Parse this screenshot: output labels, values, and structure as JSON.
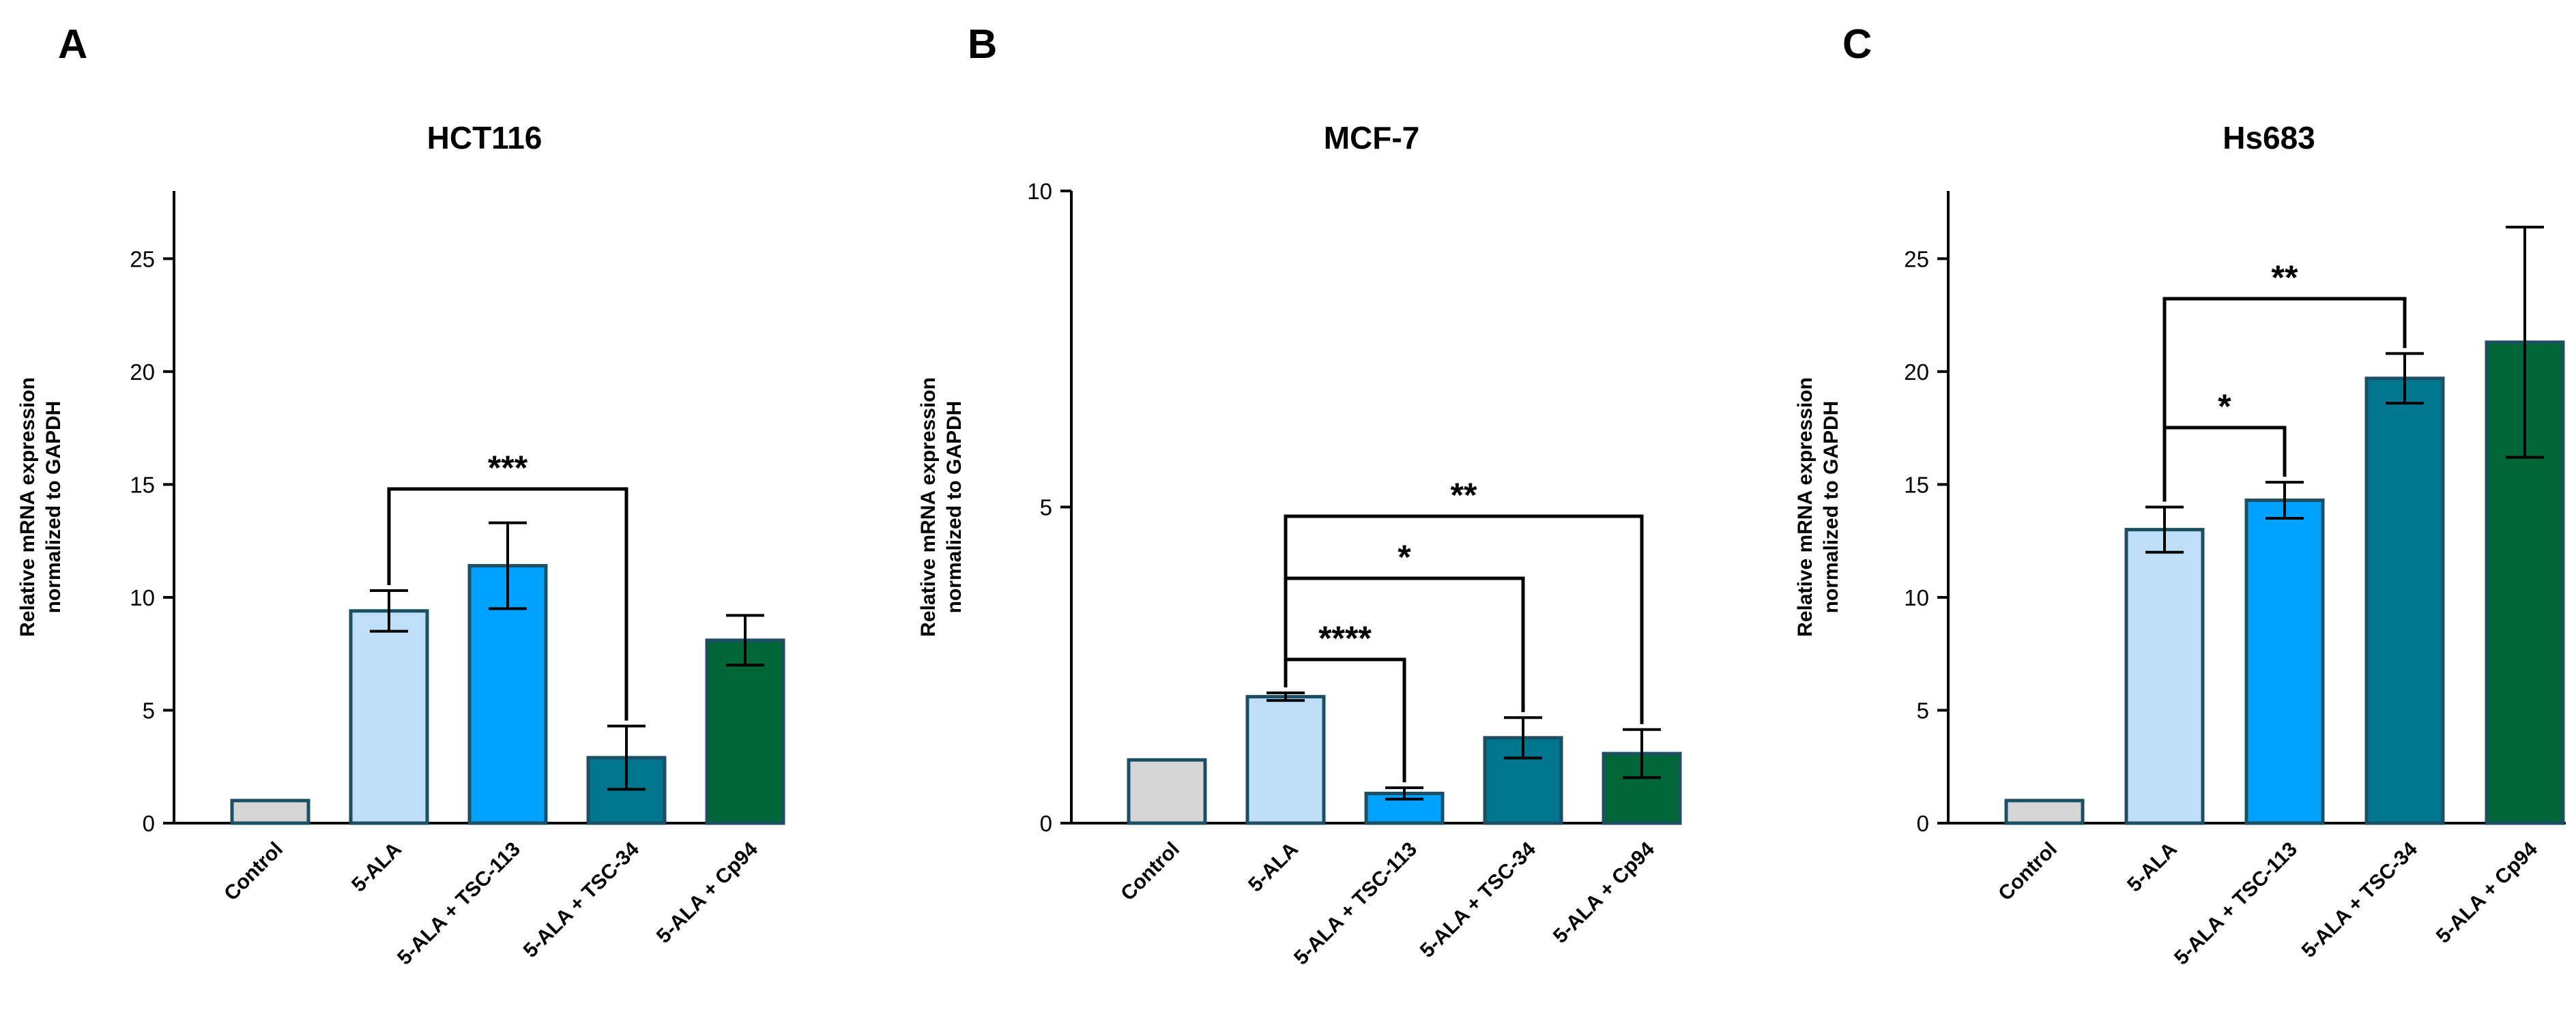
{
  "chart_data": [
    {
      "type": "bar",
      "panel": "A",
      "title": "HCT116",
      "ylabel": [
        "Relative mRNA expression",
        "normalized to GAPDH"
      ],
      "ylim": [
        0,
        28
      ],
      "yticks": [
        0,
        5,
        10,
        15,
        20,
        25
      ],
      "categories": [
        "Control",
        "5-ALA",
        "5-ALA + TSC-113",
        "5-ALA + TSC-34",
        "5-ALA + Cp94"
      ],
      "values": [
        1.0,
        9.4,
        11.4,
        2.9,
        8.1
      ],
      "errors": [
        0,
        0.9,
        1.9,
        1.4,
        1.1
      ],
      "colors": [
        "#d6d6d6",
        "#bfdff8",
        "#00a2ff",
        "#00768e",
        "#006635"
      ],
      "significance": [
        {
          "from": 1,
          "to": 3,
          "label": "***"
        }
      ]
    },
    {
      "type": "bar",
      "panel": "B",
      "title": "MCF-7",
      "ylabel": [
        "Relative mRNA expression",
        "normalized to GAPDH"
      ],
      "ylim": [
        0,
        10
      ],
      "yticks": [
        0,
        5,
        10
      ],
      "categories": [
        "Control",
        "5-ALA",
        "5-ALA + TSC-113",
        "5-ALA + TSC-34",
        "5-ALA + Cp94"
      ],
      "values": [
        1.0,
        2.0,
        0.47,
        1.35,
        1.1
      ],
      "errors": [
        0,
        0.06,
        0.09,
        0.32,
        0.38
      ],
      "colors": [
        "#d6d6d6",
        "#bfdff8",
        "#00a2ff",
        "#00768e",
        "#006635"
      ],
      "significance": [
        {
          "from": 1,
          "to": 2,
          "label": "****"
        },
        {
          "from": 1,
          "to": 3,
          "label": "*"
        },
        {
          "from": 1,
          "to": 4,
          "label": "**"
        }
      ]
    },
    {
      "type": "bar",
      "panel": "C",
      "title": "Hs683",
      "ylabel": [
        "Relative mRNA expression",
        "normalized to GAPDH"
      ],
      "ylim": [
        0,
        28
      ],
      "yticks": [
        0,
        5,
        10,
        15,
        20,
        25
      ],
      "categories": [
        "Control",
        "5-ALA",
        "5-ALA + TSC-113",
        "5-ALA + TSC-34",
        "5-ALA + Cp94"
      ],
      "values": [
        1.0,
        13.0,
        14.3,
        19.7,
        21.3
      ],
      "errors": [
        0,
        1.0,
        0.8,
        1.1,
        5.1
      ],
      "colors": [
        "#d6d6d6",
        "#bfdff8",
        "#00a2ff",
        "#00768e",
        "#006635"
      ],
      "significance": [
        {
          "from": 1,
          "to": 2,
          "label": "*"
        },
        {
          "from": 1,
          "to": 3,
          "label": "**"
        }
      ]
    }
  ]
}
